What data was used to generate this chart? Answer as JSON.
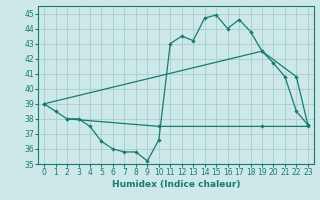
{
  "xlabel": "Humidex (Indice chaleur)",
  "background_color": "#cce8e8",
  "grid_color": "#aacccc",
  "line_color": "#1a7a6e",
  "xlim": [
    -0.5,
    23.5
  ],
  "ylim": [
    35,
    45.5
  ],
  "xticks": [
    0,
    1,
    2,
    3,
    4,
    5,
    6,
    7,
    8,
    9,
    10,
    11,
    12,
    13,
    14,
    15,
    16,
    17,
    18,
    19,
    20,
    21,
    22,
    23
  ],
  "yticks": [
    35,
    36,
    37,
    38,
    39,
    40,
    41,
    42,
    43,
    44,
    45
  ],
  "line1_x": [
    0,
    1,
    2,
    3,
    4,
    5,
    6,
    7,
    8,
    9,
    10,
    11,
    12,
    13,
    14,
    15,
    16,
    17,
    18,
    19,
    20,
    21,
    22,
    23
  ],
  "line1_y": [
    39.0,
    38.5,
    38.0,
    38.0,
    37.5,
    36.5,
    36.0,
    35.8,
    35.8,
    35.2,
    36.6,
    43.0,
    43.5,
    43.2,
    44.7,
    44.9,
    44.0,
    44.6,
    43.8,
    42.5,
    41.7,
    40.8,
    38.5,
    37.6
  ],
  "line2_x": [
    0,
    19,
    22,
    23
  ],
  "line2_y": [
    39.0,
    42.5,
    40.8,
    37.6
  ],
  "line3_x": [
    2,
    10,
    19,
    23
  ],
  "line3_y": [
    38.0,
    37.5,
    37.5,
    37.5
  ]
}
